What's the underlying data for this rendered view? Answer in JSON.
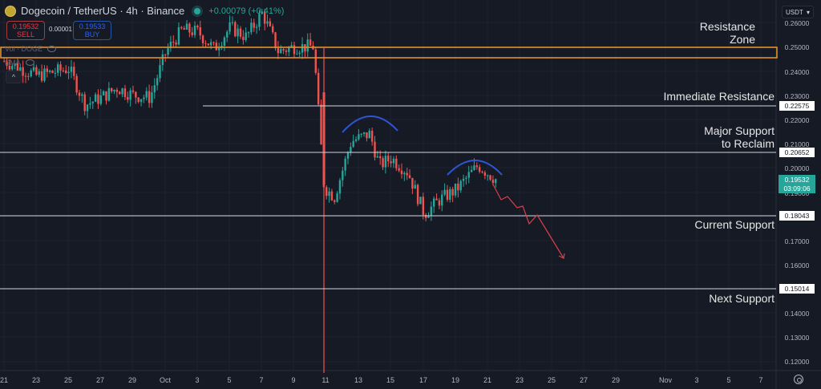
{
  "header": {
    "symbol": "Dogecoin / TetherUS · 4h · Binance",
    "change": "+0.00079 (+0.41%)",
    "sell_price": "0.19532",
    "sell_label": "SELL",
    "buy_price": "0.19533",
    "buy_label": "BUY",
    "spread": "0.00001",
    "legend_volume": "Vol · DOGE",
    "legend_sma": "SMA",
    "collapse_glyph": "^"
  },
  "currency_selector": {
    "value": "USDT",
    "glyph": "▾"
  },
  "colors": {
    "background": "#161a25",
    "up": "#26a69a",
    "down": "#ef5350",
    "resistance_zone": "#f0a030",
    "level_line": "#d1d4dc",
    "arc": "#2f55d4",
    "projection": "#d9404a",
    "current_price_bg": "#26a69a"
  },
  "annotations": {
    "resistance_zone": [
      "Resistance",
      "Zone"
    ],
    "immediate_resistance": "Immediate Resistance",
    "major_support": [
      "Major Support",
      "to Reclaim"
    ],
    "current_support": "Current Support",
    "next_support": "Next Support"
  },
  "price_axis": {
    "labels": [
      "0.26000",
      "0.25000",
      "0.24000",
      "0.23000",
      "0.22000",
      "0.21000",
      "0.20000",
      "0.19000",
      "0.17000",
      "0.16000",
      "0.14000",
      "0.13000",
      "0.12000"
    ],
    "level_boxes": [
      "0.22575",
      "0.20652",
      "0.18043",
      "0.15014"
    ],
    "current_price": "0.19532",
    "countdown": "03:09:06"
  },
  "time_axis": {
    "labels": [
      "21",
      "23",
      "25",
      "27",
      "29",
      "Oct",
      "3",
      "5",
      "7",
      "9",
      "11",
      "13",
      "15",
      "17",
      "19",
      "21",
      "23",
      "25",
      "27",
      "29",
      "Nov",
      "3",
      "5",
      "7"
    ]
  },
  "chart_data": {
    "type": "candlestick",
    "title": "Dogecoin / TetherUS · 4h · Binance",
    "xlabel": "",
    "ylabel": "USDT",
    "ylim": [
      0.115,
      0.265
    ],
    "grid": true,
    "x_ticks": [
      "21",
      "23",
      "25",
      "27",
      "29",
      "Oct",
      "3",
      "5",
      "7",
      "9",
      "11",
      "13",
      "15",
      "17",
      "19",
      "21",
      "23",
      "25",
      "27",
      "29",
      "Nov",
      "3",
      "5",
      "7"
    ],
    "levels": [
      {
        "name": "Resistance Zone",
        "from": 0.2455,
        "to": 0.2495
      },
      {
        "name": "Immediate Resistance",
        "value": 0.22575
      },
      {
        "name": "Major Support to Reclaim",
        "value": 0.20652
      },
      {
        "name": "Current Support",
        "value": 0.18043
      },
      {
        "name": "Next Support",
        "value": 0.15014
      }
    ],
    "current_price": 0.19532,
    "close_series_approx": [
      {
        "date": "Sep 21",
        "close": 0.244
      },
      {
        "date": "Sep 23",
        "close": 0.238
      },
      {
        "date": "Sep 25",
        "close": 0.241
      },
      {
        "date": "Sep 26",
        "close": 0.226
      },
      {
        "date": "Sep 27",
        "close": 0.229
      },
      {
        "date": "Sep 28",
        "close": 0.233
      },
      {
        "date": "Sep 29",
        "close": 0.23
      },
      {
        "date": "Sep 30",
        "close": 0.229
      },
      {
        "date": "Oct 1",
        "close": 0.248
      },
      {
        "date": "Oct 2",
        "close": 0.257
      },
      {
        "date": "Oct 3",
        "close": 0.256
      },
      {
        "date": "Oct 4",
        "close": 0.249
      },
      {
        "date": "Oct 5",
        "close": 0.258
      },
      {
        "date": "Oct 6",
        "close": 0.254
      },
      {
        "date": "Oct 7",
        "close": 0.264
      },
      {
        "date": "Oct 8",
        "close": 0.248
      },
      {
        "date": "Oct 9",
        "close": 0.25
      },
      {
        "date": "Oct 10",
        "close": 0.25
      },
      {
        "date": "Oct 10 late",
        "close": 0.192
      },
      {
        "date": "Oct 11",
        "close": 0.188
      },
      {
        "date": "Oct 12",
        "close": 0.211
      },
      {
        "date": "Oct 13",
        "close": 0.214
      },
      {
        "date": "Oct 14",
        "close": 0.201
      },
      {
        "date": "Oct 15",
        "close": 0.204
      },
      {
        "date": "Oct 16",
        "close": 0.198
      },
      {
        "date": "Oct 17",
        "close": 0.181
      },
      {
        "date": "Oct 18",
        "close": 0.187
      },
      {
        "date": "Oct 19",
        "close": 0.191
      },
      {
        "date": "Oct 20",
        "close": 0.201
      },
      {
        "date": "Oct 21",
        "close": 0.195
      }
    ],
    "projection_path": [
      {
        "date": "Oct 21",
        "price": 0.195
      },
      {
        "date": "Oct 22",
        "price": 0.188
      },
      {
        "date": "Oct 23",
        "price": 0.186
      },
      {
        "date": "Oct 24",
        "price": 0.177
      },
      {
        "date": "Oct 25",
        "price": 0.18
      },
      {
        "date": "Oct 26",
        "price": 0.163
      }
    ],
    "pattern_arcs": [
      "Oct 13-14 local top",
      "Oct 20-21 lower top"
    ]
  }
}
